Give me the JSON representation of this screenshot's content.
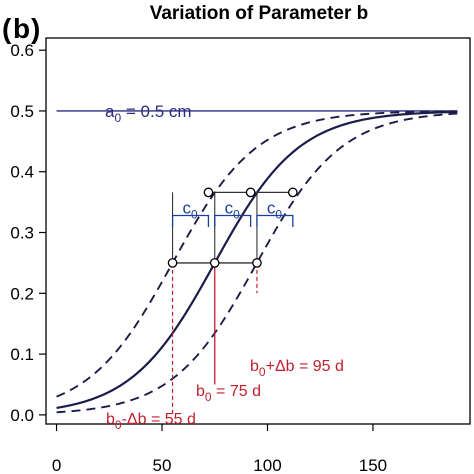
{
  "panel_label": {
    "open": "(",
    "letter": "b",
    "close": ")"
  },
  "colors": {
    "curve": "#1c1c4a",
    "asymptote": "#2c2c80",
    "bracket": "#1a3f9e",
    "annotation_red": "#c0202e",
    "connector": "#333333"
  },
  "chart_data": {
    "type": "line",
    "title": "Variation of Parameter b",
    "xlabel": "",
    "ylabel": "",
    "xlim": [
      -5,
      196
    ],
    "ylim": [
      -0.015,
      0.62
    ],
    "x_ticks": [
      0,
      50,
      100,
      150
    ],
    "y_ticks": [
      0.0,
      0.1,
      0.2,
      0.3,
      0.4,
      0.5,
      0.6
    ],
    "x_tick_labels": [
      "0",
      "50",
      "100",
      "150"
    ],
    "y_tick_labels": [
      "0.0",
      "0.1",
      "0.2",
      "0.3",
      "0.4",
      "0.5",
      "0.6"
    ],
    "grid": false,
    "x_range_curves": [
      0,
      190
    ],
    "model": {
      "a": 0.5,
      "c": 20
    },
    "series": [
      {
        "b": 55,
        "style": "dashed"
      },
      {
        "b": 75,
        "style": "solid"
      },
      {
        "b": 95,
        "style": "dashed"
      }
    ],
    "asymptote": {
      "y": 0.5,
      "x_start": 0,
      "x_end": 190
    },
    "half_points": [
      {
        "x": 55,
        "y": 0.25
      },
      {
        "x": 75,
        "y": 0.25
      },
      {
        "x": 95,
        "y": 0.25
      }
    ],
    "upper_points": [
      {
        "x": 72,
        "y": 0.366
      },
      {
        "x": 92,
        "y": 0.366
      },
      {
        "x": 112,
        "y": 0.366
      }
    ],
    "annotations": {
      "asymptote_label": {
        "base": "a",
        "sub": "0",
        "rest": " = 0.5 cm"
      },
      "bracket_label": {
        "base": "c",
        "sub": "0"
      },
      "b_labels": [
        {
          "x": 55,
          "base": "b",
          "sub": "0",
          "rest": "-Δb = 55 d"
        },
        {
          "x": 75,
          "base": "b",
          "sub": "0",
          "rest": " = 75 d"
        },
        {
          "x": 95,
          "base": "b",
          "sub": "0",
          "rest": "+Δb = 95 d"
        }
      ]
    }
  }
}
